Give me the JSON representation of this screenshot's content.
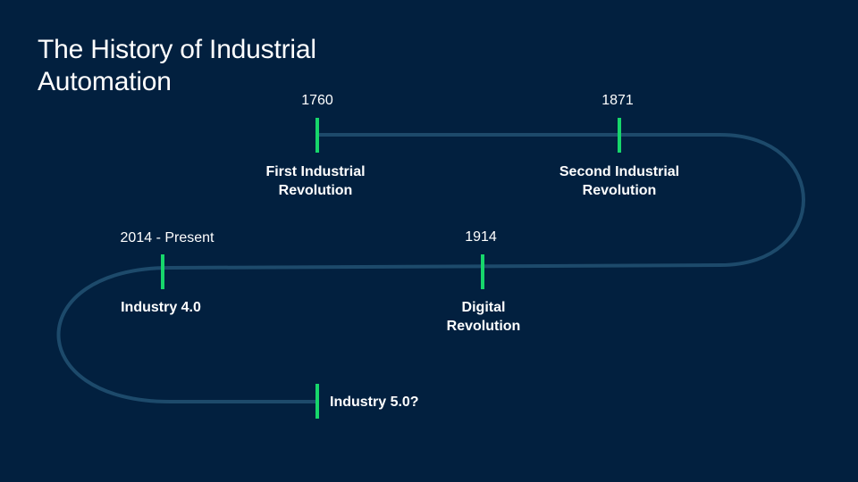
{
  "title": "The History of Industrial Automation",
  "colors": {
    "background": "#02203f",
    "track": "#1d4a6b",
    "marker": "#17d66b",
    "text": "#ffffff"
  },
  "milestones": [
    {
      "year": "1760",
      "label": "First Industrial\nRevolution"
    },
    {
      "year": "1871",
      "label": "Second Industrial\nRevolution"
    },
    {
      "year": "1914",
      "label": "Digital\nRevolution"
    },
    {
      "year": "2014 - Present",
      "label": "Industry 4.0"
    },
    {
      "year": "",
      "label": "Industry 5.0?"
    }
  ]
}
